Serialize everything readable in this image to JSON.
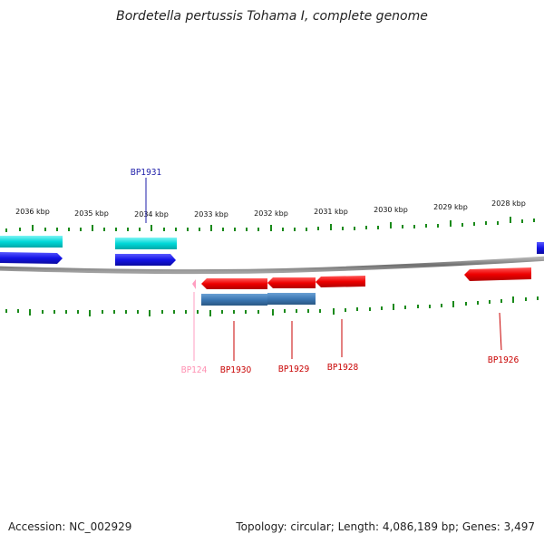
{
  "title": "Bordetella pertussis Tohama I, complete genome",
  "footer": {
    "accession": "Accession: NC_002929",
    "summary": "Topology: circular; Length: 4,086,189 bp; Genes: 3,497"
  },
  "scale_labels": [
    "2036 kbp",
    "2035 kbp",
    "2034 kbp",
    "2033 kbp",
    "2032 kbp",
    "2031 kbp",
    "2030 kbp",
    "2029 kbp",
    "2028 kbp"
  ],
  "gene_labels": [
    {
      "name": "BP1931",
      "color": "#1c1ca8"
    },
    {
      "name": "BP1930",
      "color": "#c80000"
    },
    {
      "name": "BP1929",
      "color": "#c80000"
    },
    {
      "name": "BP1928",
      "color": "#c80000"
    },
    {
      "name": "BP1926",
      "color": "#c80000"
    },
    {
      "name": "BP124",
      "color": "#ff8fb1"
    }
  ],
  "colors": {
    "cyan": "#00d8d8",
    "blue": "#1414e6",
    "red": "#ee0000",
    "steelblue": "#3c78b4",
    "pink": "#ff9ec0",
    "backbone": "#808080",
    "ticks": "#1a8a1a"
  }
}
